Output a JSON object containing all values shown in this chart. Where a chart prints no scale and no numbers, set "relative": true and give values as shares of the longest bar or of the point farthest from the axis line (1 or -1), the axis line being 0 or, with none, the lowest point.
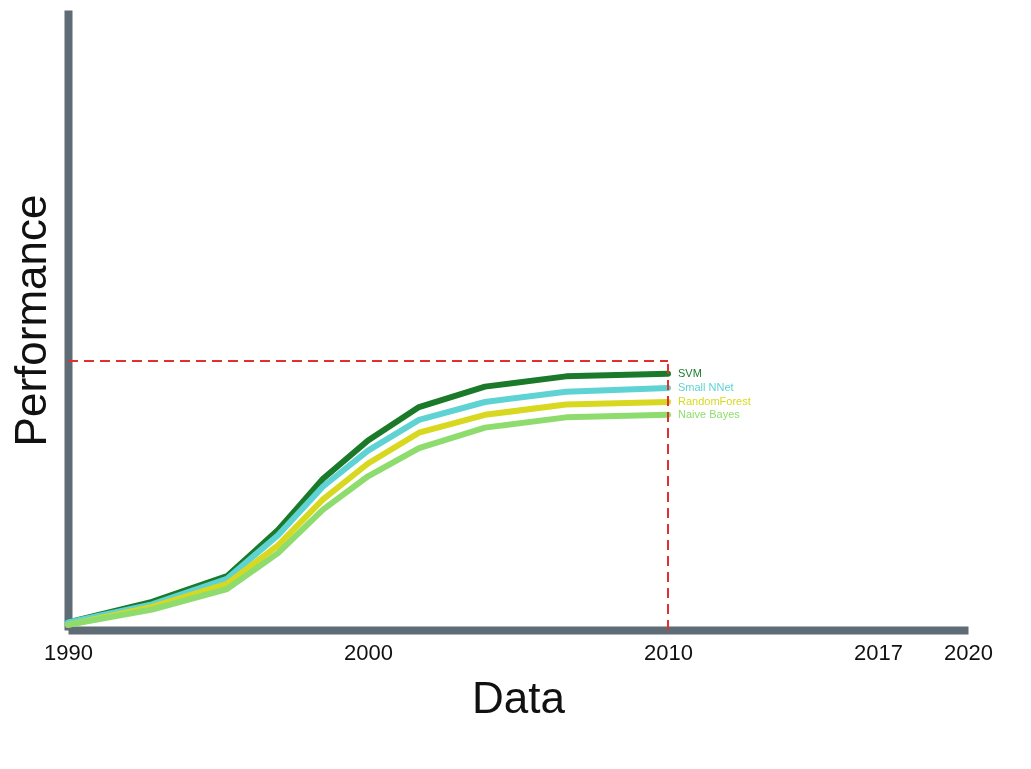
{
  "chart_data": {
    "type": "line",
    "xlabel": "Data",
    "ylabel": "Performance",
    "relative": true,
    "x": [
      1990,
      1992.8,
      1995.3,
      1997,
      1998.5,
      2000,
      2001.7,
      2003.9,
      2006.6,
      2010
    ],
    "xlim": [
      1990,
      2020
    ],
    "xticks": [
      1990,
      2000,
      2010,
      2017,
      2020
    ],
    "series": [
      {
        "name": "SVM",
        "color": "#1a7a2a",
        "values": [
          0.03,
          0.11,
          0.21,
          0.39,
          0.59,
          0.74,
          0.87,
          0.95,
          0.99,
          1.0
        ]
      },
      {
        "name": "Small NNet",
        "color": "#5fd3d3",
        "values": [
          0.03,
          0.1,
          0.2,
          0.37,
          0.56,
          0.7,
          0.82,
          0.89,
          0.93,
          0.945
        ]
      },
      {
        "name": "RandomForest",
        "color": "#d8d820",
        "values": [
          0.02,
          0.09,
          0.18,
          0.33,
          0.51,
          0.65,
          0.77,
          0.84,
          0.88,
          0.89
        ]
      },
      {
        "name": "Naive Bayes",
        "color": "#8fdc6e",
        "values": [
          0.02,
          0.08,
          0.16,
          0.3,
          0.47,
          0.6,
          0.71,
          0.79,
          0.83,
          0.84
        ]
      }
    ],
    "ref_lines": [
      {
        "axis": "y",
        "value": 1.05,
        "color": "#e03030",
        "line_style": "dashed"
      },
      {
        "axis": "x",
        "value": 2010,
        "color": "#e03030",
        "line_style": "dashed"
      }
    ],
    "grid": false,
    "legend": false,
    "marker": "none",
    "line_style": "solid"
  }
}
